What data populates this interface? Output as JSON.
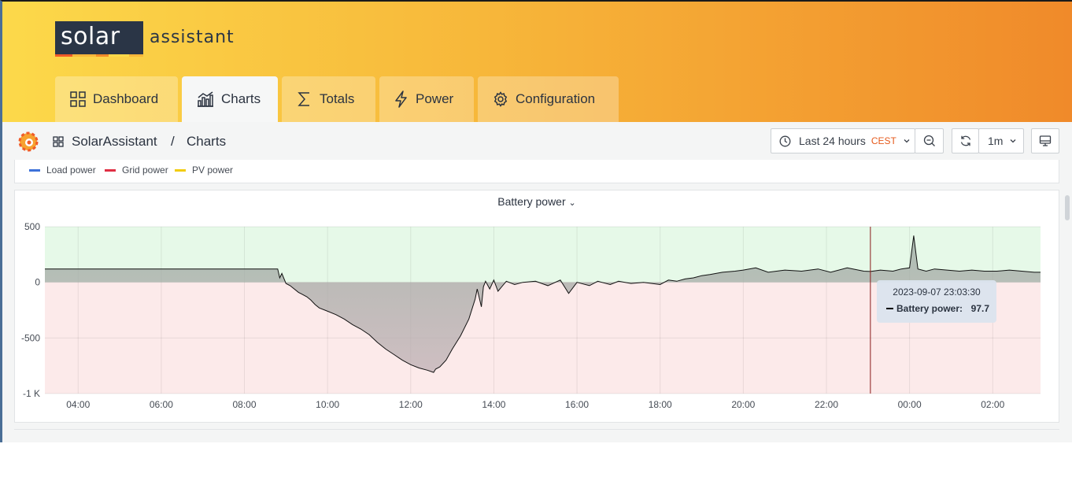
{
  "brand": {
    "logo_word": "solar",
    "logo_sub": "assistant",
    "colors": {
      "logo_bg": "#2a3546",
      "stripe_1": "#f05a28",
      "stripe_2": "#f7b73a",
      "stripe_3": "#fcd94a"
    }
  },
  "nav": {
    "items": [
      {
        "label": "Dashboard",
        "icon": "dashboard-grid-icon"
      },
      {
        "label": "Charts",
        "icon": "chart-bars-icon",
        "active": true
      },
      {
        "label": "Totals",
        "icon": "sigma-icon"
      },
      {
        "label": "Power",
        "icon": "lightning-icon"
      },
      {
        "label": "Configuration",
        "icon": "gear-icon"
      }
    ]
  },
  "toolbar": {
    "breadcrumb_home": "SolarAssistant",
    "breadcrumb_sep": "/",
    "breadcrumb_page": "Charts",
    "time_range": "Last 24 hours",
    "timezone": "CEST",
    "refresh_interval": "1m"
  },
  "legend": {
    "items": [
      {
        "label": "Load power",
        "color": "#3d71d9"
      },
      {
        "label": "Grid power",
        "color": "#e02f44"
      },
      {
        "label": "PV power",
        "color": "#f2cc0c"
      }
    ]
  },
  "panel": {
    "title": "Battery power"
  },
  "tooltip": {
    "time": "2023-09-07 23:03:30",
    "series": "Battery power:",
    "value": "97.7"
  },
  "chart_data": {
    "type": "area",
    "title": "Battery power",
    "xlabel": "",
    "ylabel": "",
    "x_ticks": [
      "04:00",
      "06:00",
      "08:00",
      "10:00",
      "12:00",
      "14:00",
      "16:00",
      "18:00",
      "20:00",
      "22:00",
      "00:00",
      "02:00"
    ],
    "y_ticks": [
      "500",
      "0",
      "-500",
      "-1 K"
    ],
    "ylim": [
      -1000,
      500
    ],
    "xlim_hours": [
      3.2,
      27.15
    ],
    "grid": true,
    "thresholds": [
      {
        "range": [
          0,
          500
        ],
        "color": "#e6f9e8"
      },
      {
        "range": [
          -1000,
          0
        ],
        "color": "#fceaea"
      }
    ],
    "crosshair_x": 23.058,
    "series": [
      {
        "name": "Battery power",
        "x": [
          3.2,
          8.8,
          8.85,
          8.9,
          9.0,
          9.1,
          9.3,
          9.5,
          9.6,
          9.7,
          9.8,
          10.0,
          10.2,
          10.4,
          10.6,
          10.8,
          11.0,
          11.2,
          11.4,
          11.6,
          11.8,
          12.0,
          12.2,
          12.4,
          12.55,
          12.6,
          12.7,
          12.85,
          13.0,
          13.2,
          13.4,
          13.55,
          13.6,
          13.7,
          13.75,
          13.8,
          13.9,
          14.0,
          14.1,
          14.3,
          14.5,
          14.7,
          15.0,
          15.3,
          15.6,
          15.8,
          16.0,
          16.3,
          16.5,
          16.8,
          17.0,
          17.3,
          17.6,
          18.0,
          18.2,
          18.4,
          18.6,
          18.8,
          19.0,
          19.2,
          19.5,
          19.8,
          20.0,
          20.3,
          20.6,
          21.0,
          21.4,
          21.8,
          22.1,
          22.5,
          22.9,
          23.06,
          23.3,
          23.6,
          23.8,
          24.0,
          24.1,
          24.2,
          24.4,
          24.6,
          24.9,
          25.2,
          25.5,
          25.8,
          26.1,
          26.4,
          26.7,
          27.0,
          27.15
        ],
        "y": [
          120,
          120,
          40,
          80,
          -10,
          -30,
          -90,
          -130,
          -160,
          -200,
          -230,
          -260,
          -290,
          -330,
          -380,
          -420,
          -470,
          -540,
          -600,
          -650,
          -700,
          -740,
          -770,
          -790,
          -810,
          -780,
          -760,
          -700,
          -600,
          -480,
          -330,
          -150,
          -60,
          -220,
          -40,
          10,
          -60,
          20,
          -80,
          10,
          -20,
          0,
          10,
          -30,
          20,
          -100,
          0,
          -30,
          10,
          -20,
          10,
          -10,
          0,
          -20,
          20,
          10,
          30,
          40,
          60,
          70,
          90,
          100,
          110,
          130,
          90,
          110,
          100,
          120,
          90,
          130,
          100,
          97.7,
          110,
          100,
          120,
          130,
          420,
          120,
          100,
          120,
          110,
          100,
          110,
          100,
          100,
          110,
          100,
          90,
          90
        ]
      }
    ]
  }
}
